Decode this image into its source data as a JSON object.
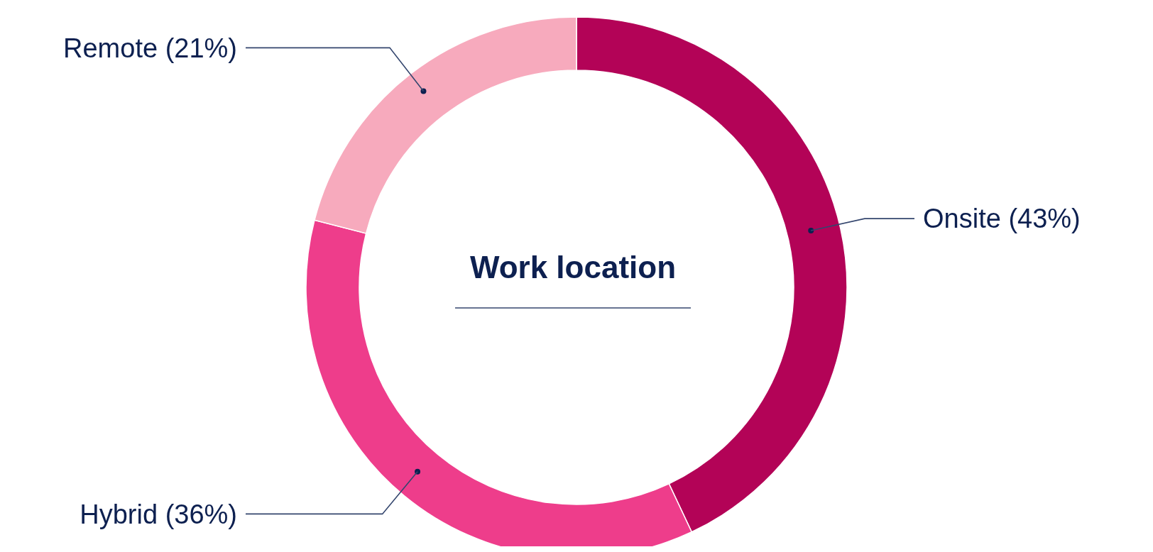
{
  "chart_data": {
    "type": "donut",
    "title": "Work location",
    "categories": [
      "Onsite",
      "Hybrid",
      "Remote"
    ],
    "values": [
      43,
      36,
      21
    ],
    "value_labels": [
      "(43%)",
      "(36%)",
      "(21%)"
    ],
    "colors": [
      "#b30357",
      "#ee3d8b",
      "#f7aabd"
    ]
  }
}
